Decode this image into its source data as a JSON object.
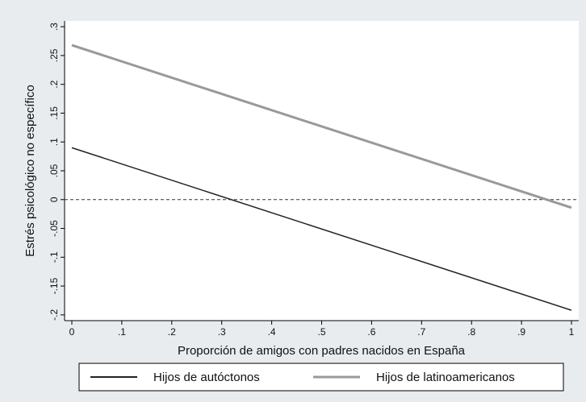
{
  "chart_data": {
    "type": "line",
    "xlabel": "Proporción de amigos con padres nacidos en España",
    "ylabel": "Estrés psicológico no específico",
    "xlim": [
      0,
      1
    ],
    "ylim": [
      -0.21,
      0.31
    ],
    "x_ticks": [
      0,
      0.1,
      0.2,
      0.3,
      0.4,
      0.5,
      0.6,
      0.7,
      0.8,
      0.9,
      1
    ],
    "x_tick_labels": [
      "0",
      ".1",
      ".2",
      ".3",
      ".4",
      ".5",
      ".6",
      ".7",
      ".8",
      ".9",
      "1"
    ],
    "y_ticks": [
      -0.2,
      -0.15,
      -0.1,
      -0.05,
      0,
      0.05,
      0.1,
      0.15,
      0.2,
      0.25,
      0.3
    ],
    "y_tick_labels": [
      "-.2",
      "-.15",
      "-.1",
      "-.05",
      "0",
      ".05",
      ".1",
      ".15",
      ".2",
      ".25",
      ".3"
    ],
    "reference_line": {
      "y": 0,
      "style": "dashed"
    },
    "grid": false,
    "legend_position": "bottom",
    "series": [
      {
        "name": "Hijos de autóctonos",
        "x": [
          0,
          1
        ],
        "y": [
          0.09,
          -0.192
        ],
        "color": "#222222"
      },
      {
        "name": "Hijos de latinoamericanos",
        "x": [
          0,
          1
        ],
        "y": [
          0.268,
          -0.014
        ],
        "color": "#999999"
      }
    ]
  }
}
